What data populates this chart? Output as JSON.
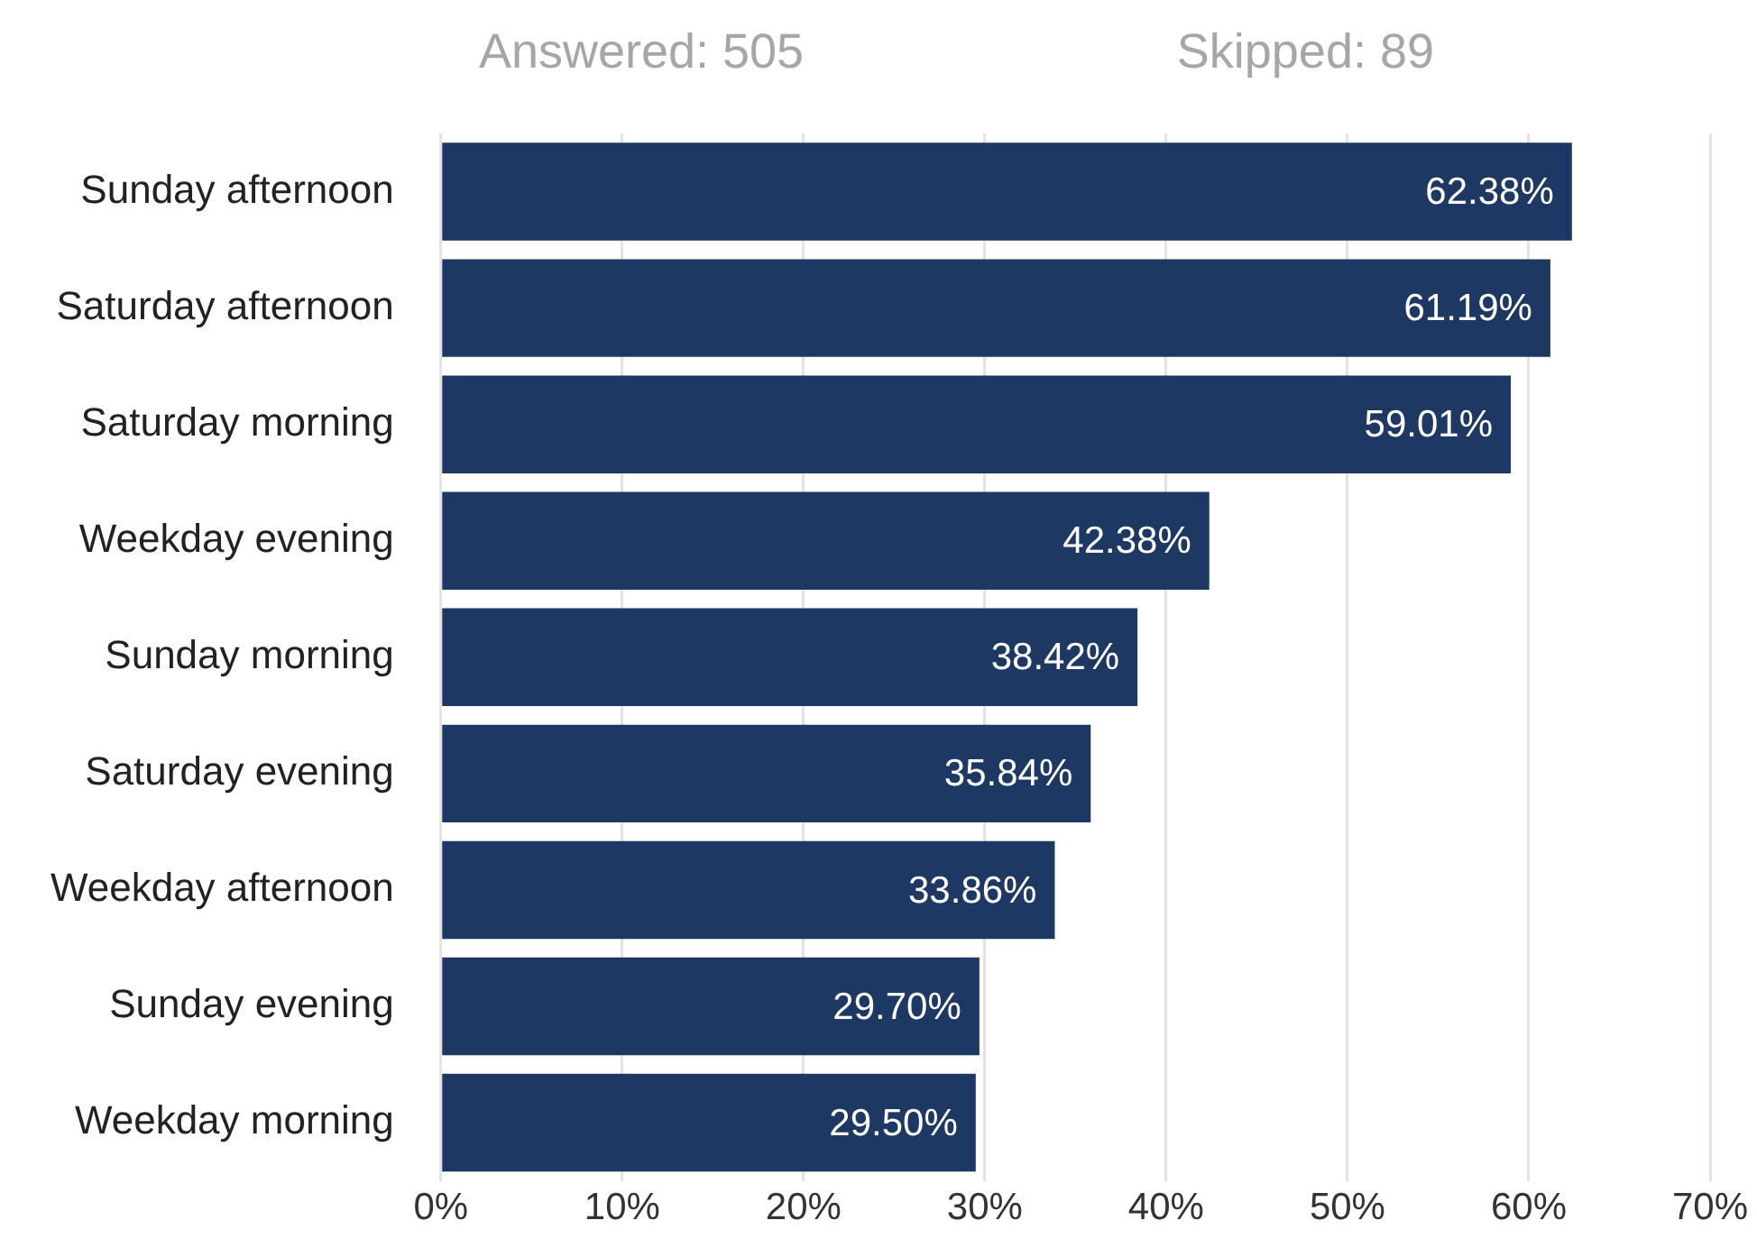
{
  "chart_data": {
    "type": "bar",
    "orientation": "horizontal",
    "categories": [
      "Sunday afternoon",
      "Saturday afternoon",
      "Saturday morning",
      "Weekday evening",
      "Sunday morning",
      "Saturday evening",
      "Weekday afternoon",
      "Sunday evening",
      "Weekday morning"
    ],
    "values": [
      62.38,
      61.19,
      59.01,
      42.38,
      38.42,
      35.84,
      33.86,
      29.7,
      29.5
    ],
    "value_labels": [
      "62.38%",
      "61.19%",
      "59.01%",
      "42.38%",
      "38.42%",
      "35.84%",
      "33.86%",
      "29.70%",
      "29.50%"
    ],
    "color": "#1d3862",
    "xlim": [
      0,
      70
    ],
    "xticks": [
      {
        "value": 0,
        "label": "0%"
      },
      {
        "value": 10,
        "label": "10%"
      },
      {
        "value": 20,
        "label": "20%"
      },
      {
        "value": 30,
        "label": "30%"
      },
      {
        "value": 40,
        "label": "40%"
      },
      {
        "value": 50,
        "label": "50%"
      },
      {
        "value": 60,
        "label": "60%"
      },
      {
        "value": 70,
        "label": "70%"
      }
    ],
    "grid": "x",
    "annotations": [
      "Answered: 505",
      "Skipped: 89"
    ]
  }
}
